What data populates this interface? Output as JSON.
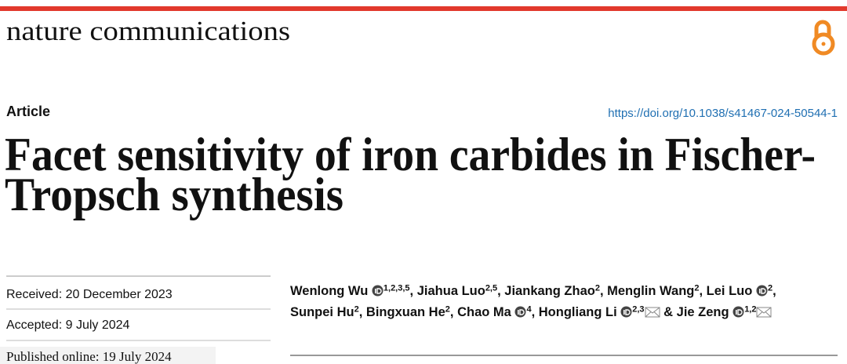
{
  "header": {
    "journal": "nature communications",
    "article_type": "Article",
    "doi": "https://doi.org/10.1038/s41467-024-50544-1"
  },
  "title_lines": [
    "Facet sensitivity of iron carbides in Fischer-",
    "Tropsch synthesis"
  ],
  "dates": {
    "received": "Received: 20 December 2023",
    "accepted": "Accepted: 9 July 2024",
    "published": "Published online: 19 July 2024"
  },
  "authors": [
    {
      "name": "Wenlong Wu",
      "orcid": true,
      "affiliations": "1,2,3,5",
      "separator": ","
    },
    {
      "name": "Jiahua Luo",
      "orcid": false,
      "affiliations": "2,5",
      "separator": ","
    },
    {
      "name": "Jiankang Zhao",
      "orcid": false,
      "affiliations": "2",
      "separator": ","
    },
    {
      "name": "Menglin Wang",
      "orcid": false,
      "affiliations": "2",
      "separator": ","
    },
    {
      "name": "Lei Luo",
      "orcid": true,
      "affiliations": "2",
      "separator": ","
    },
    {
      "name": "Sunpei Hu",
      "orcid": false,
      "affiliations": "2",
      "separator": ","
    },
    {
      "name": "Bingxuan He",
      "orcid": false,
      "affiliations": "2",
      "separator": ","
    },
    {
      "name": "Chao Ma",
      "orcid": true,
      "affiliations": "4",
      "separator": ","
    },
    {
      "name": "Hongliang Li",
      "orcid": true,
      "affiliations": "2,3",
      "corresponding": true,
      "separator": "&"
    },
    {
      "name": "Jie Zeng",
      "orcid": true,
      "affiliations": "1,2",
      "corresponding": true
    }
  ]
}
